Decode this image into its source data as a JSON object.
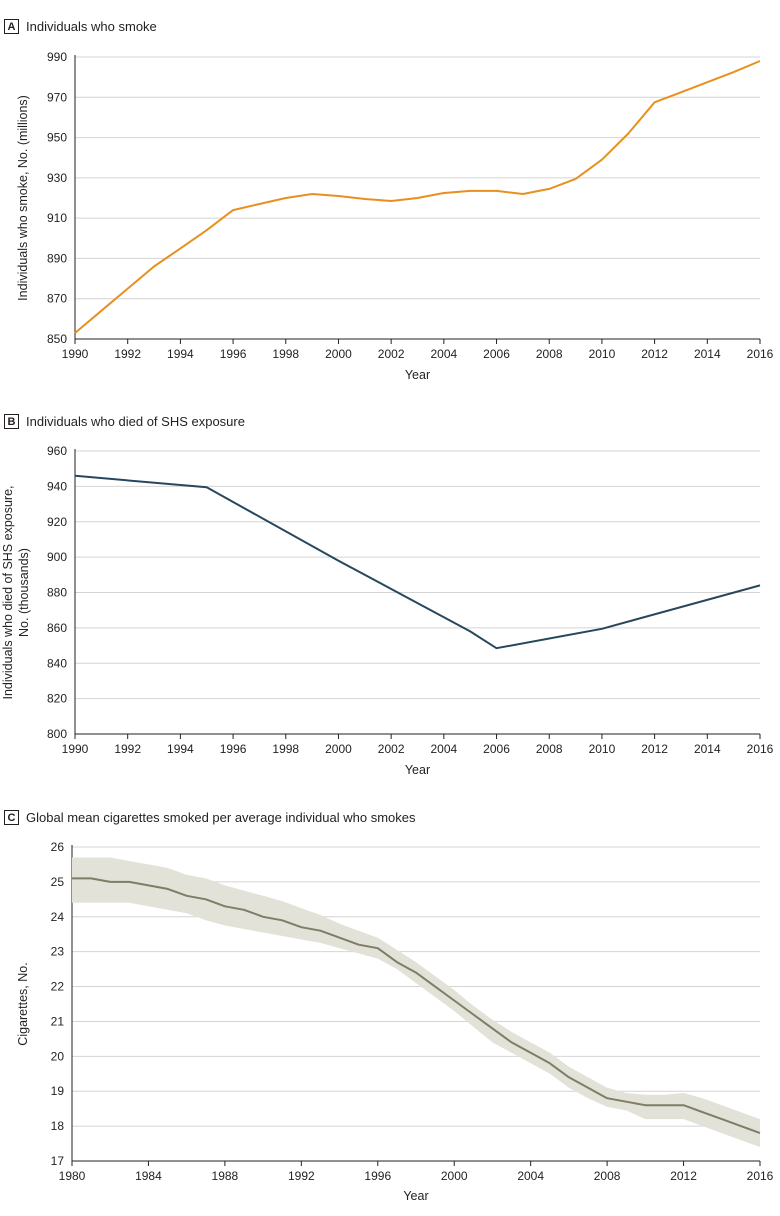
{
  "panels": [
    {
      "letter": "A",
      "title": "Individuals who smoke"
    },
    {
      "letter": "B",
      "title": "Individuals who died of SHS exposure"
    },
    {
      "letter": "C",
      "title": "Global mean cigarettes smoked per average individual who smokes"
    }
  ],
  "colors": {
    "panel_a": "#e8901f",
    "panel_b": "#27475e",
    "panel_c": "#7e7d66",
    "band_c": "#e3e2d8",
    "grid": "#d4d4d4",
    "axis": "#231f20"
  },
  "chart_data": [
    {
      "type": "line",
      "title": "Individuals who smoke",
      "xlabel": "Year",
      "ylabel": "Individuals who smoke, No. (millions)",
      "xlim": [
        1990,
        2016
      ],
      "ylim": [
        850,
        990
      ],
      "xticks": [
        1990,
        1992,
        1994,
        1996,
        1998,
        2000,
        2002,
        2004,
        2006,
        2008,
        2010,
        2012,
        2014,
        2016
      ],
      "yticks": [
        850,
        870,
        890,
        910,
        930,
        950,
        970,
        990
      ],
      "grid": true,
      "series": [
        {
          "x": [
            1990,
            1991,
            1992,
            1993,
            1994,
            1995,
            1996,
            1997,
            1998,
            1999,
            2000,
            2001,
            2002,
            2003,
            2004,
            2005,
            2006,
            2007,
            2008,
            2009,
            2010,
            2011,
            2012,
            2013,
            2014,
            2015,
            2016
          ],
          "values": [
            853,
            864,
            875,
            886,
            895,
            904,
            914,
            917,
            920,
            922,
            921,
            919.5,
            918.5,
            920,
            922.5,
            923.5,
            923.5,
            922,
            924.5,
            929.5,
            939,
            952,
            967.5,
            972.5,
            977.5,
            982.5,
            988
          ]
        }
      ]
    },
    {
      "type": "line",
      "title": "Individuals who died of SHS exposure",
      "xlabel": "Year",
      "ylabel": "Individuals who died of SHS exposure, No. (thousands)",
      "xlim": [
        1990,
        2016
      ],
      "ylim": [
        800,
        960
      ],
      "xticks": [
        1990,
        1992,
        1994,
        1996,
        1998,
        2000,
        2002,
        2004,
        2006,
        2008,
        2010,
        2012,
        2014,
        2016
      ],
      "yticks": [
        800,
        820,
        840,
        860,
        880,
        900,
        920,
        940,
        960
      ],
      "grid": true,
      "series": [
        {
          "x": [
            1990,
            1995,
            2000,
            2005,
            2006,
            2010,
            2016
          ],
          "values": [
            946,
            939.5,
            898,
            858,
            848.5,
            859.5,
            884
          ]
        }
      ]
    },
    {
      "type": "area",
      "title": "Global mean cigarettes smoked per average individual who smokes",
      "xlabel": "Year",
      "ylabel": "Cigarettes, No.",
      "xlim": [
        1980,
        2016
      ],
      "ylim": [
        17,
        26
      ],
      "xticks": [
        1980,
        1984,
        1988,
        1992,
        1996,
        2000,
        2004,
        2008,
        2012,
        2016
      ],
      "yticks": [
        17,
        18,
        19,
        20,
        21,
        22,
        23,
        24,
        25,
        26
      ],
      "grid": true,
      "series": [
        {
          "x": [
            1980,
            1981,
            1982,
            1983,
            1984,
            1985,
            1986,
            1987,
            1988,
            1989,
            1990,
            1991,
            1992,
            1993,
            1994,
            1995,
            1996,
            1997,
            1998,
            1999,
            2000,
            2001,
            2002,
            2003,
            2004,
            2005,
            2006,
            2007,
            2008,
            2009,
            2010,
            2011,
            2012,
            2013,
            2014,
            2015,
            2016
          ],
          "values": [
            25.1,
            25.1,
            25.0,
            25.0,
            24.9,
            24.8,
            24.6,
            24.5,
            24.3,
            24.2,
            24.0,
            23.9,
            23.7,
            23.6,
            23.4,
            23.2,
            23.1,
            22.7,
            22.4,
            22.0,
            21.6,
            21.2,
            20.8,
            20.4,
            20.1,
            19.8,
            19.4,
            19.1,
            18.8,
            18.7,
            18.6,
            18.6,
            18.6,
            18.4,
            18.2,
            18.0,
            17.8
          ],
          "lower": [
            24.4,
            24.4,
            24.4,
            24.4,
            24.3,
            24.2,
            24.1,
            23.9,
            23.75,
            23.65,
            23.55,
            23.45,
            23.35,
            23.25,
            23.1,
            22.95,
            22.8,
            22.5,
            22.1,
            21.7,
            21.3,
            20.85,
            20.4,
            20.1,
            19.8,
            19.5,
            19.1,
            18.8,
            18.55,
            18.45,
            18.2,
            18.2,
            18.2,
            18.0,
            17.8,
            17.6,
            17.4
          ],
          "upper": [
            25.7,
            25.7,
            25.7,
            25.6,
            25.5,
            25.4,
            25.2,
            25.1,
            24.9,
            24.75,
            24.6,
            24.45,
            24.25,
            24.05,
            23.8,
            23.6,
            23.4,
            23.05,
            22.7,
            22.3,
            21.9,
            21.45,
            21.05,
            20.7,
            20.4,
            20.1,
            19.7,
            19.4,
            19.1,
            18.95,
            18.9,
            18.9,
            18.95,
            18.8,
            18.6,
            18.4,
            18.2
          ]
        }
      ]
    }
  ]
}
